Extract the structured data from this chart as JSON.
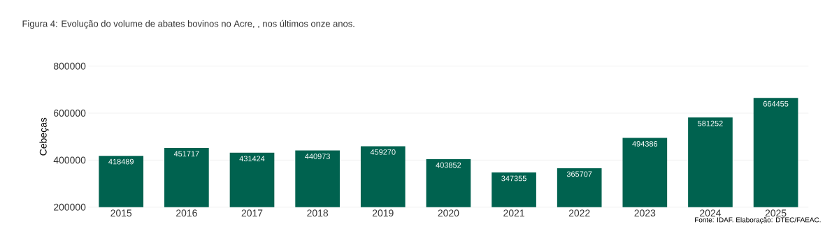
{
  "chart_data": {
    "type": "bar",
    "title": "Figura 4: Evolução do volume de abates bovinos no Acre, , nos últimos onze anos.",
    "ylabel": "Cebeças",
    "categories": [
      "2015",
      "2016",
      "2017",
      "2018",
      "2019",
      "2020",
      "2021",
      "2022",
      "2023",
      "2024",
      "2025"
    ],
    "values": [
      418489,
      451717,
      431424,
      440973,
      459270,
      403852,
      347355,
      365707,
      494386,
      581252,
      664455
    ],
    "color": "#00624f",
    "ylim": [
      200000,
      800000
    ],
    "yticks": [
      200000,
      400000,
      600000,
      800000
    ],
    "grid": "y",
    "data_labels": true,
    "annotations": [
      "Fonte: IDAF. Elaboração: DTEC/FAEAC."
    ]
  }
}
